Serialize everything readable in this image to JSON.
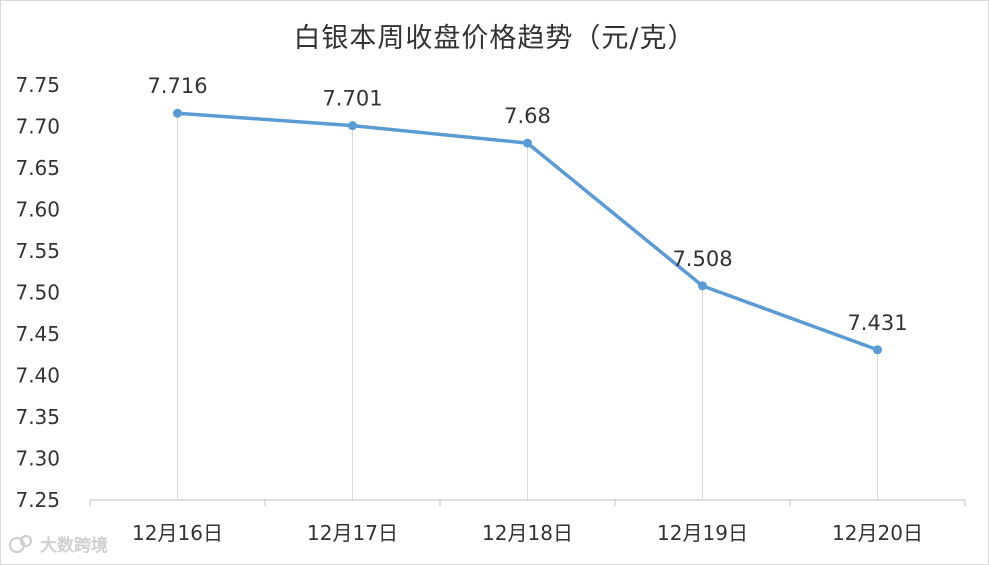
{
  "chart_data": {
    "type": "line",
    "title": "白银本周收盘价格趋势（元/克）",
    "categories": [
      "12月16日",
      "12月17日",
      "12月18日",
      "12月19日",
      "12月20日"
    ],
    "series": [
      {
        "values": [
          7.716,
          7.701,
          7.68,
          7.508,
          7.431
        ]
      }
    ],
    "data_labels": [
      "7.716",
      "7.701",
      "7.68",
      "7.508",
      "7.431"
    ],
    "y_ticks": [
      "7.25",
      "7.30",
      "7.35",
      "7.40",
      "7.45",
      "7.50",
      "7.55",
      "7.60",
      "7.65",
      "7.70",
      "7.75"
    ],
    "ylim": [
      7.25,
      7.75
    ],
    "line_color": "#5b9bd5",
    "drop_line_color": "#d9d9d9",
    "grid": false,
    "legend": "none"
  },
  "watermark": {
    "text": "大数跨境",
    "icon": "logo-icon"
  }
}
